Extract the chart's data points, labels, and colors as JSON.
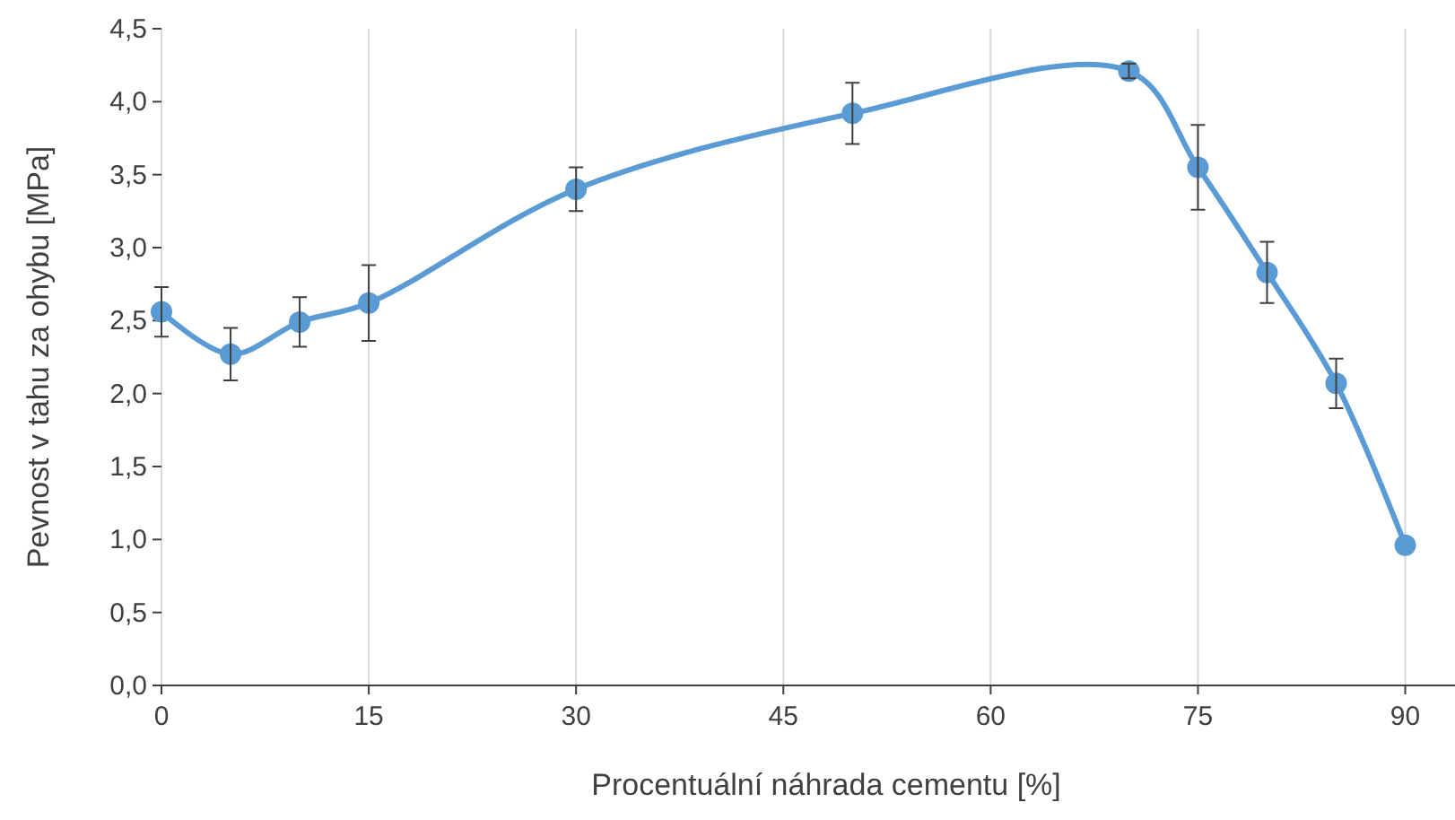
{
  "chart_data": {
    "type": "line",
    "xlabel": "Procentuální náhrada cementu [%]",
    "ylabel": "Pevnost v tahu za ohybu [MPa]",
    "x": [
      0,
      5,
      10,
      15,
      30,
      50,
      70,
      75,
      80,
      85,
      90
    ],
    "series": [
      {
        "color": "#5b9bd5",
        "values": [
          2.56,
          2.27,
          2.49,
          2.62,
          3.4,
          3.92,
          4.21,
          3.55,
          2.83,
          2.07,
          0.96
        ],
        "errors": [
          0.17,
          0.18,
          0.17,
          0.26,
          0.15,
          0.21,
          0.05,
          0.29,
          0.21,
          0.17,
          null
        ]
      }
    ],
    "xlim": [
      0,
      93.6
    ],
    "xticks": [
      0,
      15,
      30,
      45,
      60,
      75,
      90
    ],
    "ylim": [
      0,
      4.5
    ],
    "yticks": [
      {
        "value": 0,
        "label": "0,0"
      },
      {
        "value": 0.5,
        "label": "0,5"
      },
      {
        "value": 1,
        "label": "1,0"
      },
      {
        "value": 1.5,
        "label": "1,5"
      },
      {
        "value": 2,
        "label": "2,0"
      },
      {
        "value": 2.5,
        "label": "2,5"
      },
      {
        "value": 3,
        "label": "3,0"
      },
      {
        "value": 3.5,
        "label": "3,5"
      },
      {
        "value": 4,
        "label": "4,0"
      },
      {
        "value": 4.5,
        "label": "4,5"
      }
    ],
    "grid": "x",
    "marker": "circle",
    "line_style": "solid"
  }
}
